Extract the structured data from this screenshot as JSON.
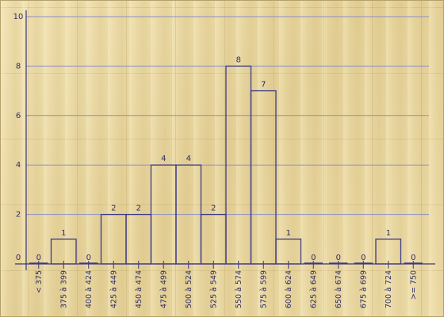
{
  "chart_data": {
    "type": "bar",
    "categories": [
      "< 375",
      "375 à 399",
      "400 à 424",
      "425 à 449",
      "450 à 474",
      "475 à 499",
      "500 à 524",
      "525 à 549",
      "550 à 574",
      "575 à 599",
      "600 à 624",
      "625 à 649",
      "650 à 674",
      "675 à 699",
      "700 à 724",
      ">= 750"
    ],
    "values": [
      0,
      1,
      0,
      2,
      2,
      4,
      4,
      2,
      8,
      7,
      1,
      0,
      0,
      0,
      1,
      0
    ],
    "value_labels": [
      "0",
      "1",
      "0",
      "2",
      "2",
      "4",
      "4",
      "2",
      "8",
      "7",
      "1",
      "0",
      "0",
      "0",
      "1",
      "0"
    ],
    "title": "",
    "xlabel": "",
    "ylabel": "",
    "ylim": [
      0,
      10
    ],
    "y_ticks": [
      "0",
      "2",
      "4",
      "6",
      "8",
      "10"
    ],
    "grid": true,
    "colors": {
      "bar_outline": "#3b3a8a",
      "gridline": "#8d8fc4",
      "text": "#2f2c64"
    }
  }
}
